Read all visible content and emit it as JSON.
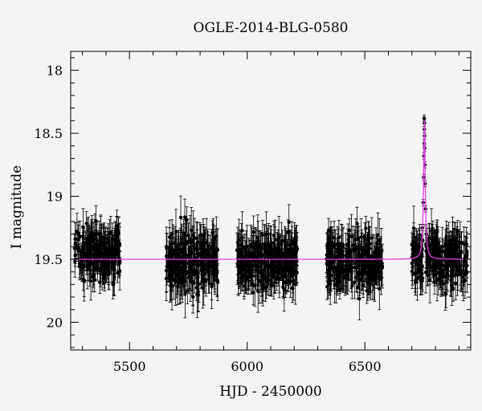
{
  "chart_data": {
    "type": "scatter",
    "title": "OGLE-2014-BLG-0580",
    "xlabel": "HJD - 2450000",
    "ylabel": "I magnitude",
    "xlim": [
      5250,
      6950
    ],
    "ylim": [
      20.22,
      17.85
    ],
    "y_inverted": true,
    "x_ticks": [
      5500,
      6000,
      6500
    ],
    "y_ticks": [
      18,
      18.5,
      19,
      19.5,
      20
    ],
    "grid": false,
    "baseline_magnitude": 19.5,
    "colors": {
      "data": "#000000",
      "model": "#e040e0",
      "background": "#f4f4f4"
    },
    "seasons": [
      {
        "start": 5265,
        "end": 5460,
        "mean_mag": 19.45,
        "scatter": 0.15,
        "error": 0.13
      },
      {
        "start": 5655,
        "end": 5875,
        "mean_mag": 19.52,
        "scatter": 0.17,
        "error": 0.15
      },
      {
        "start": 5955,
        "end": 6215,
        "mean_mag": 19.52,
        "scatter": 0.15,
        "error": 0.14
      },
      {
        "start": 6335,
        "end": 6575,
        "mean_mag": 19.52,
        "scatter": 0.15,
        "error": 0.14
      },
      {
        "start": 6700,
        "end": 6935,
        "mean_mag": 19.5,
        "scatter": 0.14,
        "error": 0.14
      }
    ],
    "event": {
      "t0": 6753,
      "peak_mag": 18.4,
      "peak_points": [
        {
          "x": 6752,
          "y": 18.38
        },
        {
          "x": 6753,
          "y": 18.42
        },
        {
          "x": 6752.5,
          "y": 18.47
        },
        {
          "x": 6753.5,
          "y": 18.52
        },
        {
          "x": 6752,
          "y": 18.58
        },
        {
          "x": 6754,
          "y": 18.62
        },
        {
          "x": 6751,
          "y": 18.68
        },
        {
          "x": 6755,
          "y": 18.75
        },
        {
          "x": 6750,
          "y": 18.85
        },
        {
          "x": 6756,
          "y": 18.9
        },
        {
          "x": 6748,
          "y": 19.05
        },
        {
          "x": 6758,
          "y": 19.1
        },
        {
          "x": 6745,
          "y": 19.25
        },
        {
          "x": 6761,
          "y": 19.3
        }
      ]
    }
  }
}
